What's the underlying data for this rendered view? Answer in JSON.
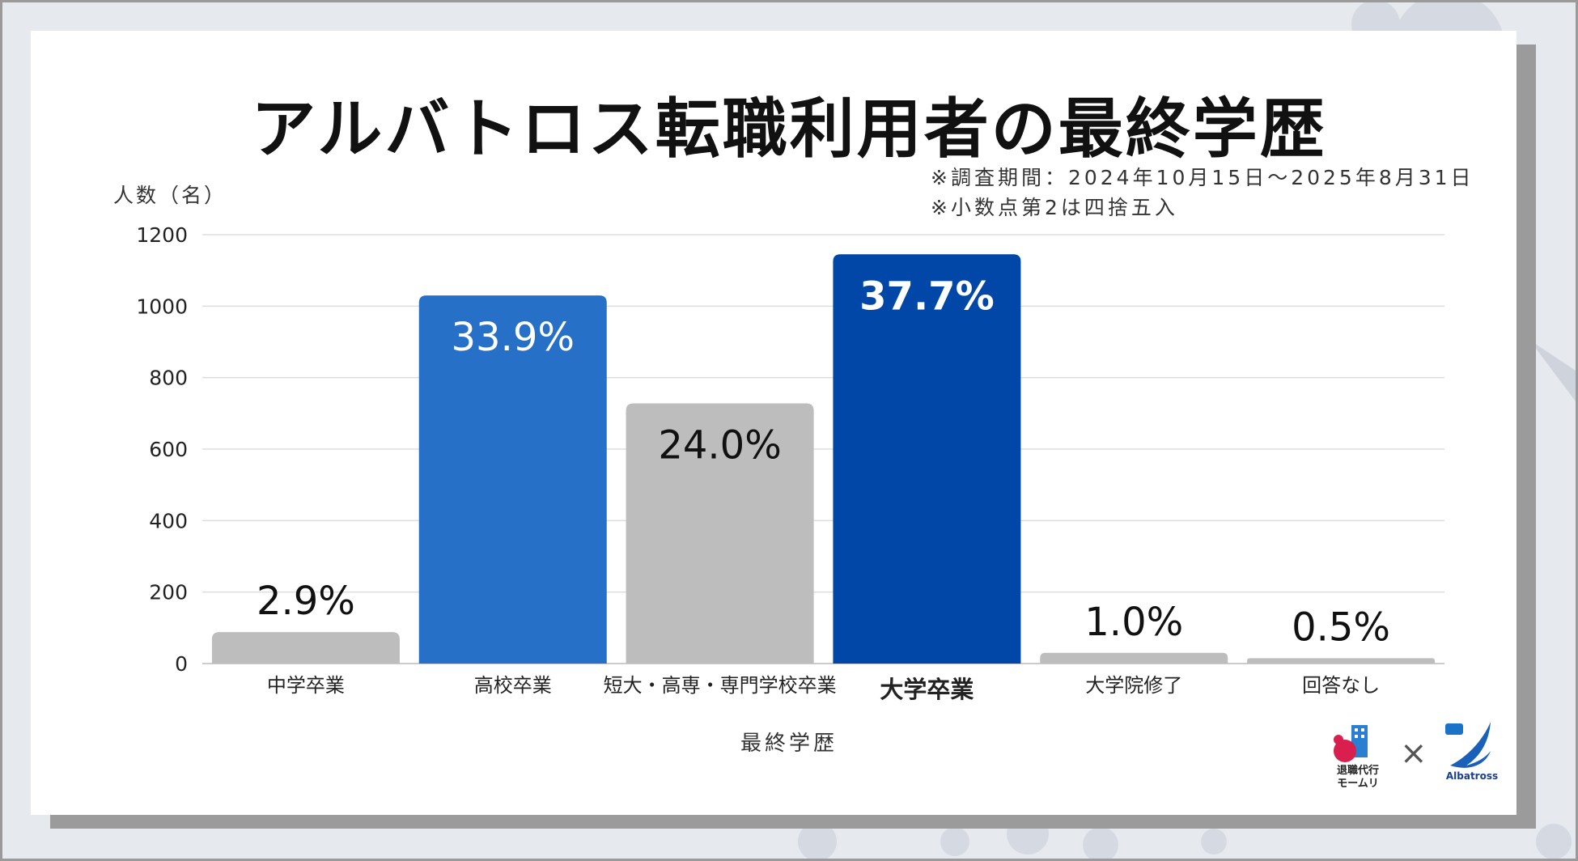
{
  "title": "アルバトロス転職利用者の最終学歴",
  "notes": [
    "※調査期間：2024年10月15日〜2025年8月31日",
    "※小数点第2は四捨五入"
  ],
  "logos": {
    "left_text": "退職代行\nモームリ",
    "right_text": "Albatross",
    "separator": "×"
  },
  "chart_data": {
    "type": "bar",
    "ylabel": "人数（名）",
    "xlabel": "最終学歴",
    "ylim": [
      0,
      1200
    ],
    "yticks": [
      0,
      200,
      400,
      600,
      800,
      1000,
      1200
    ],
    "grid": true,
    "categories": [
      "中学卒業",
      "高校卒業",
      "短大・高専・専門学校卒業",
      "大学卒業",
      "大学院修了",
      "回答なし"
    ],
    "values": [
      88,
      1030,
      728,
      1145,
      30,
      15
    ],
    "labels": [
      "2.9%",
      "33.9%",
      "24.0%",
      "37.7%",
      "1.0%",
      "0.5%"
    ],
    "colors": [
      "#bdbdbd",
      "#2670c8",
      "#bdbdbd",
      "#0047a8",
      "#bdbdbd",
      "#bdbdbd"
    ],
    "label_colors": [
      "#111111",
      "#ffffff",
      "#111111",
      "#ffffff",
      "#111111",
      "#111111"
    ],
    "label_inside": [
      false,
      true,
      true,
      true,
      false,
      false
    ],
    "bold": [
      false,
      false,
      false,
      true,
      false,
      false
    ]
  }
}
